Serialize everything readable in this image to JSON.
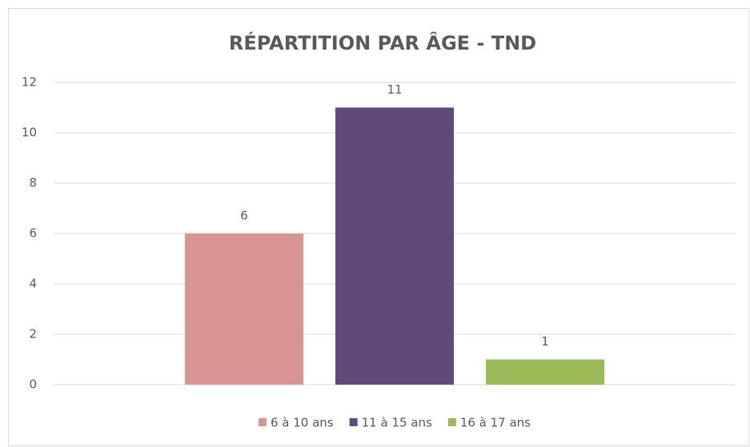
{
  "chart_data": {
    "type": "bar",
    "title": "RÉPARTITION PAR ÂGE - TND",
    "categories": [
      null
    ],
    "series": [
      {
        "name": "6 à 10 ans",
        "color": "#d99594",
        "values": [
          6
        ]
      },
      {
        "name": "11 à 15 ans",
        "color": "#604a7b",
        "values": [
          11
        ]
      },
      {
        "name": "16 à 17 ans",
        "color": "#9bbb59",
        "values": [
          1
        ]
      }
    ],
    "ylim": [
      0,
      12
    ],
    "yticks": [
      0,
      2,
      4,
      6,
      8,
      10,
      12
    ],
    "grid": true,
    "legend": "bottom"
  }
}
